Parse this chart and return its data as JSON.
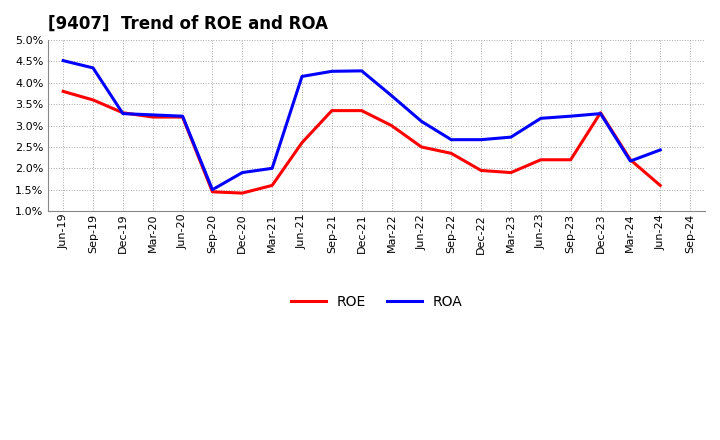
{
  "title": "[9407]  Trend of ROE and ROA",
  "x_labels": [
    "Jun-19",
    "Sep-19",
    "Dec-19",
    "Mar-20",
    "Jun-20",
    "Sep-20",
    "Dec-20",
    "Mar-21",
    "Jun-21",
    "Sep-21",
    "Dec-21",
    "Mar-22",
    "Jun-22",
    "Sep-22",
    "Dec-22",
    "Mar-23",
    "Jun-23",
    "Sep-23",
    "Dec-23",
    "Mar-24",
    "Jun-24",
    "Sep-24"
  ],
  "roe": [
    3.8,
    3.6,
    3.3,
    3.2,
    3.2,
    1.45,
    1.42,
    1.6,
    2.6,
    3.35,
    3.35,
    3.0,
    2.5,
    2.35,
    1.95,
    1.9,
    2.2,
    2.2,
    3.3,
    2.2,
    1.6,
    null
  ],
  "roa": [
    4.52,
    4.35,
    3.28,
    3.25,
    3.22,
    1.5,
    1.9,
    2.0,
    4.15,
    4.27,
    4.28,
    3.7,
    3.1,
    2.67,
    2.67,
    2.73,
    3.17,
    3.22,
    3.28,
    2.17,
    2.43,
    null
  ],
  "roe_color": "#ff0000",
  "roa_color": "#0000ff",
  "ylim": [
    1.0,
    5.0
  ],
  "yticks": [
    1.0,
    1.5,
    2.0,
    2.5,
    3.0,
    3.5,
    4.0,
    4.5,
    5.0
  ],
  "background_color": "#ffffff",
  "grid_color": "#aaaaaa",
  "line_width": 2.2,
  "title_fontsize": 12,
  "tick_fontsize": 8,
  "legend_fontsize": 10
}
